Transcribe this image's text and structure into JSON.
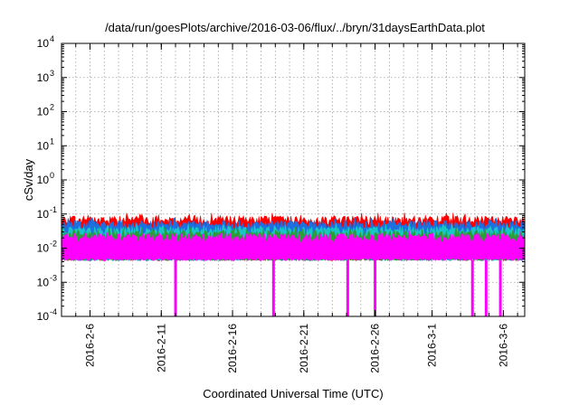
{
  "chart_data": {
    "type": "area",
    "title": "/data/run/goesPlots/archive/2016-03-06/flux/../bryn/31daysEarthData.plot",
    "xlabel": "Coordinated Universal Time (UTC)",
    "ylabel": "cSv/day",
    "yscale": "log",
    "ylim": [
      0.0001,
      10000
    ],
    "xlim": [
      "2016-02-04",
      "2016-03-07T12:00"
    ],
    "grid": true,
    "y_tick_values": [
      0.0001,
      0.001,
      0.01,
      0.1,
      1,
      10,
      100,
      1000,
      10000
    ],
    "y_ticks": [
      {
        "base": "10",
        "exp": "-4"
      },
      {
        "base": "10",
        "exp": "-3"
      },
      {
        "base": "10",
        "exp": "-2"
      },
      {
        "base": "10",
        "exp": "-1"
      },
      {
        "base": "10",
        "exp": "0"
      },
      {
        "base": "10",
        "exp": "1"
      },
      {
        "base": "10",
        "exp": "2"
      },
      {
        "base": "10",
        "exp": "3"
      },
      {
        "base": "10",
        "exp": "4"
      }
    ],
    "x_ticks": [
      {
        "label": "2016-2-6",
        "date": "2016-02-06"
      },
      {
        "label": "2016-2-11",
        "date": "2016-02-11"
      },
      {
        "label": "2016-2-16",
        "date": "2016-02-16"
      },
      {
        "label": "2016-2-21",
        "date": "2016-02-21"
      },
      {
        "label": "2016-2-26",
        "date": "2016-02-26"
      },
      {
        "label": "2016-3-1",
        "date": "2016-03-01"
      },
      {
        "label": "2016-3-6",
        "date": "2016-03-06"
      }
    ],
    "series": [
      {
        "color": "#ff0000",
        "low": 0.0045,
        "high": 0.085
      },
      {
        "color": "#1e6fe0",
        "low": 0.0045,
        "high": 0.062
      },
      {
        "color": "#19c6c6",
        "low": 0.0045,
        "high": 0.042
      },
      {
        "color": "#2a9d3a",
        "low": 0.0045,
        "high": 0.032
      },
      {
        "color": "#ff00ff",
        "low": 0.0045,
        "high": 0.026
      }
    ],
    "dropouts": [
      {
        "date": "2016-02-12T00:00",
        "value": 0.0001
      },
      {
        "date": "2016-02-18T21:00",
        "value": 0.0001
      },
      {
        "date": "2016-02-24T02:00",
        "value": 0.0001
      },
      {
        "date": "2016-02-26T00:00",
        "value": 0.0001
      },
      {
        "date": "2016-03-03T20:00",
        "value": 0.0001
      },
      {
        "date": "2016-03-04T19:00",
        "value": 0.0001
      },
      {
        "date": "2016-03-05T19:00",
        "value": 0.0001
      }
    ]
  }
}
